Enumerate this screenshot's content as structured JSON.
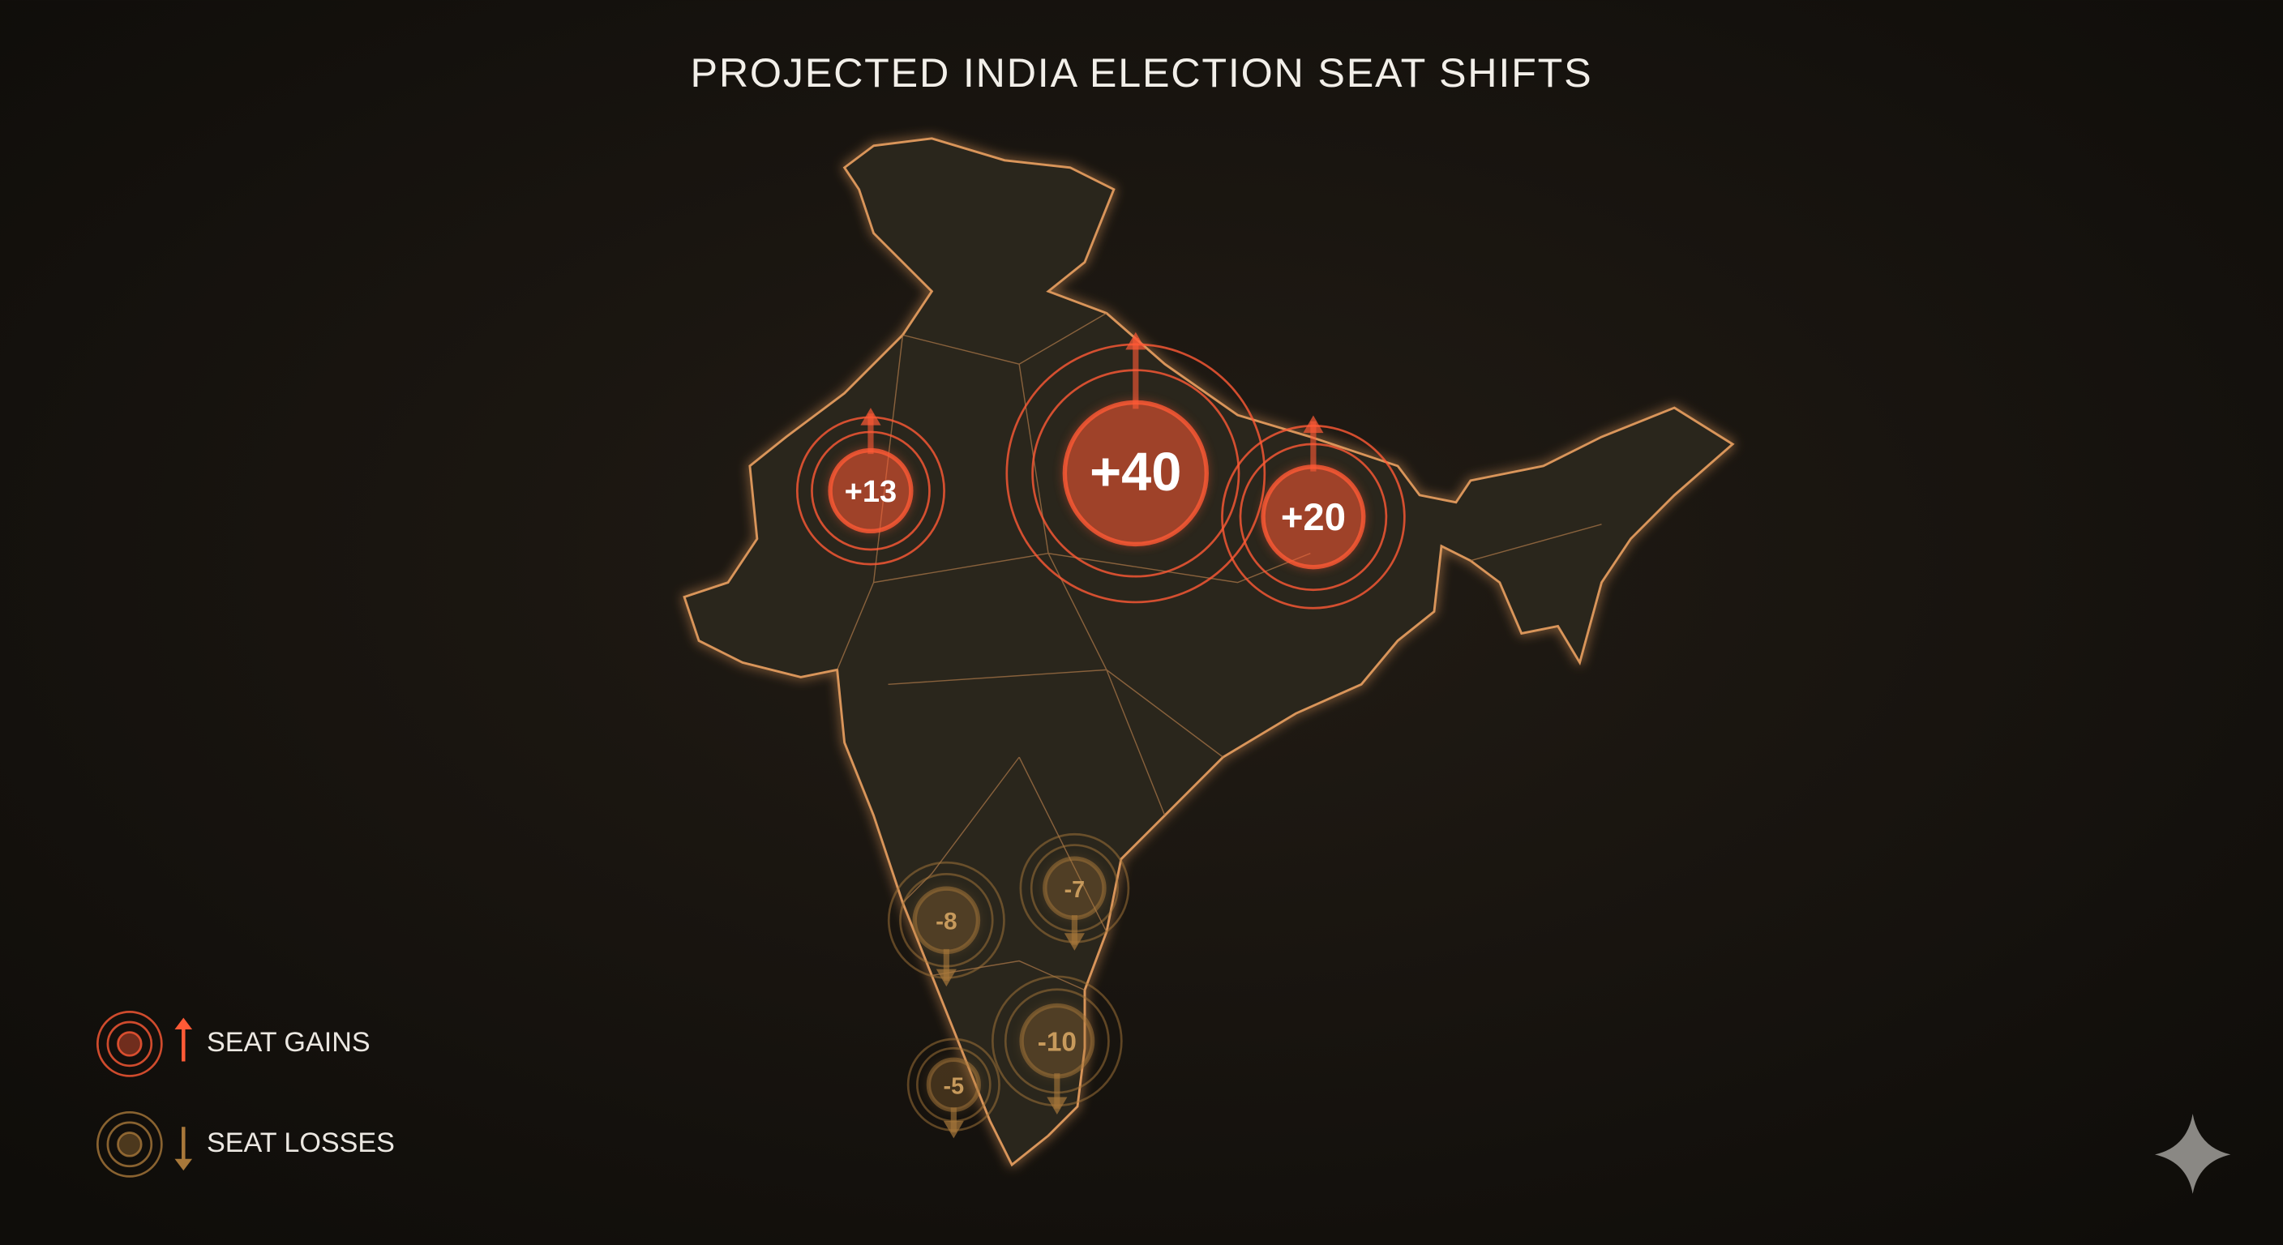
{
  "title": "PROJECTED INDIA ELECTION SEAT SHIFTS",
  "markers": [
    {
      "label": "+13",
      "value": 13
    },
    {
      "label": "+40",
      "value": 40
    },
    {
      "label": "+20",
      "value": 20
    },
    {
      "label": "-7",
      "value": -7
    },
    {
      "label": "-8",
      "value": -8
    },
    {
      "label": "-10",
      "value": -10
    },
    {
      "label": "-5",
      "value": -5
    }
  ],
  "gain_color": "#ff5a36",
  "loss_color": "#a8783a",
  "legend": {
    "gains": "SEAT GAINS",
    "losses": "SEAT LOSSES"
  }
}
